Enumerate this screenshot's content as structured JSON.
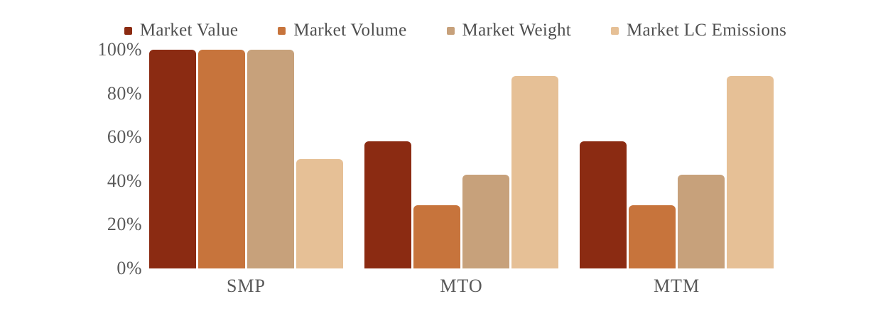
{
  "chart_data": {
    "type": "bar",
    "title": "",
    "xlabel": "",
    "ylabel": "",
    "categories": [
      "SMP",
      "MTO",
      "MTM"
    ],
    "series": [
      {
        "name": "Market Value",
        "color": "#8B2B12",
        "values": [
          100,
          58,
          58
        ]
      },
      {
        "name": "Market Volume",
        "color": "#C7743C",
        "values": [
          100,
          29,
          29
        ]
      },
      {
        "name": "Market Weight",
        "color": "#C7A17B",
        "values": [
          100,
          43,
          43
        ]
      },
      {
        "name": "Market LC Emissions",
        "color": "#E6C096",
        "values": [
          50,
          88,
          88
        ]
      }
    ],
    "y_ticks": [
      {
        "label": "100%",
        "value": 100
      },
      {
        "label": "80%",
        "value": 80
      },
      {
        "label": "60%",
        "value": 60
      },
      {
        "label": "40%",
        "value": 40
      },
      {
        "label": "20%",
        "value": 20
      },
      {
        "label": "0%",
        "value": 0
      }
    ],
    "ylim": [
      0,
      100
    ],
    "legend_position": "top",
    "grid": false,
    "background": "#FFFFFF",
    "text_color": "#595959"
  }
}
